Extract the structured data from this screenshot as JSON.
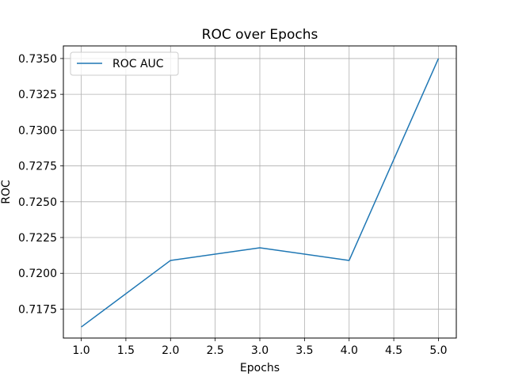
{
  "chart_data": {
    "type": "line",
    "title": "ROC over Epochs",
    "xlabel": "Epochs",
    "ylabel": "ROC",
    "x": [
      1.0,
      2.0,
      3.0,
      4.0,
      5.0
    ],
    "series": [
      {
        "name": "ROC AUC",
        "values": [
          0.71625,
          0.7209,
          0.72178,
          0.7209,
          0.735
        ],
        "color": "#1f77b4"
      }
    ],
    "xlim": [
      0.8,
      5.2
    ],
    "ylim": [
      0.71548,
      0.73588
    ],
    "xticks": [
      1.0,
      1.5,
      2.0,
      2.5,
      3.0,
      3.5,
      4.0,
      4.5,
      5.0
    ],
    "xtick_labels": [
      "1.0",
      "1.5",
      "2.0",
      "2.5",
      "3.0",
      "3.5",
      "4.0",
      "4.5",
      "5.0"
    ],
    "yticks": [
      0.7175,
      0.72,
      0.7225,
      0.725,
      0.7275,
      0.73,
      0.7325,
      0.735
    ],
    "ytick_labels": [
      "0.7175",
      "0.7200",
      "0.7225",
      "0.7250",
      "0.7275",
      "0.7300",
      "0.7325",
      "0.7350"
    ],
    "grid": true,
    "legend_position": "top-left"
  }
}
